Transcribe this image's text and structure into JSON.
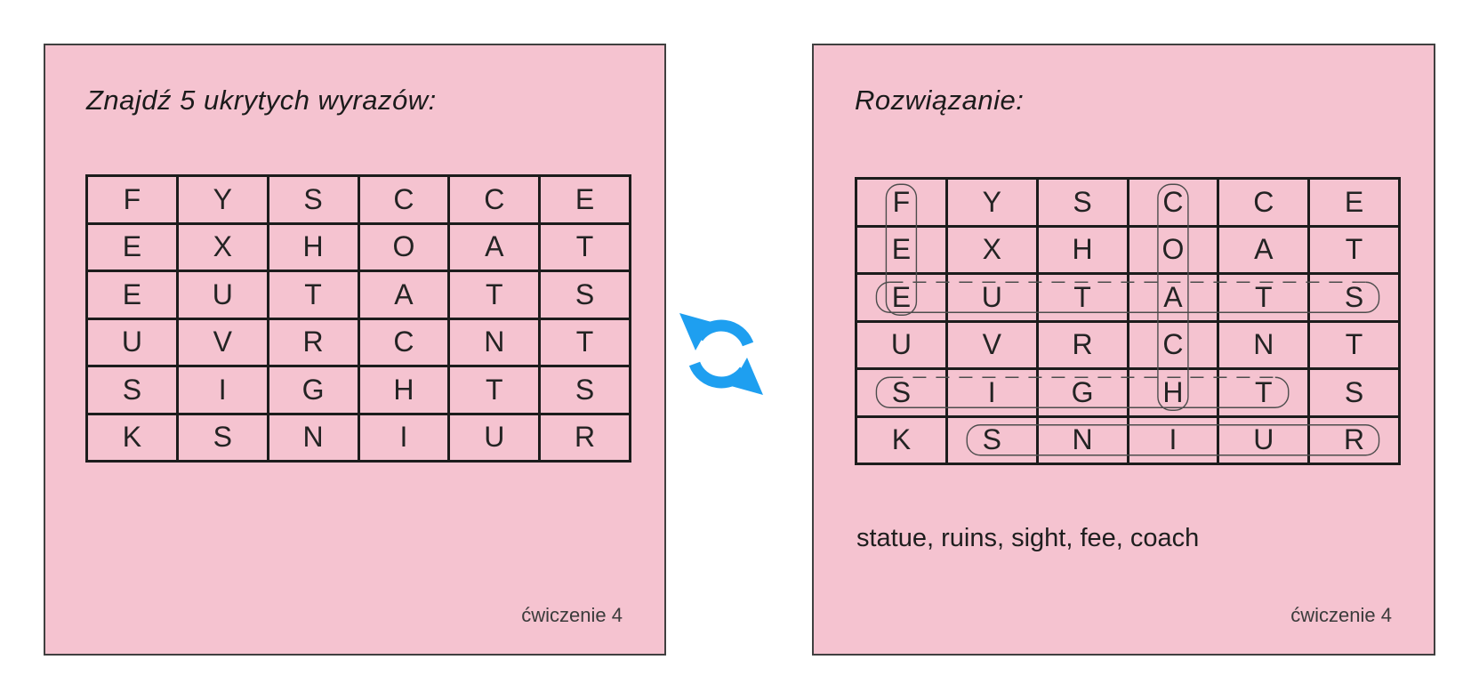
{
  "left_card": {
    "title": "Znajdź 5 ukrytych wyrazów:",
    "footer": "ćwiczenie 4"
  },
  "right_card": {
    "title": "Rozwiązanie:",
    "words_line": "statue, ruins, sight, fee, coach",
    "footer": "ćwiczenie 4"
  },
  "grid": {
    "rows": [
      [
        "F",
        "Y",
        "S",
        "C",
        "C",
        "E"
      ],
      [
        "E",
        "X",
        "H",
        "O",
        "A",
        "T"
      ],
      [
        "E",
        "U",
        "T",
        "A",
        "T",
        "S"
      ],
      [
        "U",
        "V",
        "R",
        "C",
        "N",
        "T"
      ],
      [
        "S",
        "I",
        "G",
        "H",
        "T",
        "S"
      ],
      [
        "K",
        "S",
        "N",
        "I",
        "U",
        "R"
      ]
    ]
  },
  "solution": {
    "finds": [
      {
        "word": "fee",
        "from": [
          1,
          1
        ],
        "to": [
          3,
          1
        ],
        "orientation": "vertical",
        "dashed_top": false
      },
      {
        "word": "coach",
        "from": [
          1,
          4
        ],
        "to": [
          5,
          4
        ],
        "orientation": "vertical",
        "dashed_top": false
      },
      {
        "word": "statue",
        "from": [
          3,
          1
        ],
        "to": [
          3,
          6
        ],
        "orientation": "horizontal",
        "dashed_top": true
      },
      {
        "word": "sight",
        "from": [
          5,
          1
        ],
        "to": [
          5,
          5
        ],
        "orientation": "horizontal",
        "dashed_top": true
      },
      {
        "word": "ruins",
        "from": [
          6,
          2
        ],
        "to": [
          6,
          6
        ],
        "orientation": "horizontal",
        "dashed_top": false
      }
    ]
  },
  "icons": {
    "refresh": "sync-circular-arrows-icon"
  },
  "colors": {
    "card_background": "#f5c3d0",
    "accent_blue": "#1e9ff0",
    "grid_line": "#1c1c1c",
    "capsule_stroke": "#4d4d4d"
  }
}
